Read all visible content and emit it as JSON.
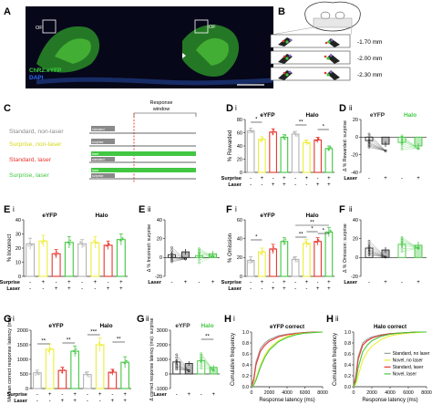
{
  "colors": {
    "grey": "#b3b3b3",
    "yellow": "#eded3a",
    "red": "#e8362f",
    "green": "#42c742",
    "dark": "#2a2a2a"
  },
  "panel_labels": {
    "A": "A",
    "B": "B",
    "C": "C",
    "D": "D",
    "Di": "i",
    "Dii": "ii",
    "E": "E",
    "Ei": "i",
    "Eii": "ii",
    "F": "F",
    "Fi": "i",
    "Fii": "ii",
    "G": "G",
    "Gi": "i",
    "Gii": "ii",
    "H1": "H",
    "H1i": "i",
    "H2": "H",
    "H2ii": "ii"
  },
  "panel_a": {
    "label_of_left": "OF",
    "label_of_right": "OF",
    "legend_1": "ChR2:eYFP",
    "legend_2": "DAPI",
    "legend_1_color": "#39d23a",
    "legend_2_color": "#2d6bff"
  },
  "panel_b": {
    "levels": [
      "-1.70 mm",
      "-2.00 mm",
      "-2.30 mm"
    ]
  },
  "panel_c": {
    "response_window_line1": "Response",
    "response_window_line2": "window",
    "bar_label_standard": "standard",
    "bar_label_surprise": "surprise",
    "bar_label_laser": "laser",
    "rows": [
      {
        "label": "Standard, non-laser",
        "color": "#8a8a8a"
      },
      {
        "label": "Surprise, non-laser",
        "color": "#d7d61a"
      },
      {
        "label": "Standard, laser",
        "color": "#e8362f"
      },
      {
        "label": "Surprise, laser",
        "color": "#42c742"
      }
    ]
  },
  "shared": {
    "eyfp": "eYFP",
    "halo": "Halo",
    "surprise_label": "Surprise",
    "laser_label": "Laser",
    "minus": "-",
    "plus": "+"
  },
  "chart_data": [
    {
      "id": "Di",
      "type": "bar",
      "ylabel": "% Rewarded",
      "ylim": [
        0,
        80
      ],
      "yticks": [
        0,
        20,
        40,
        60,
        80
      ],
      "groups": [
        "eYFP",
        "Halo"
      ],
      "surprise": [
        "-",
        "+",
        "-",
        "+",
        "-",
        "+",
        "-",
        "+"
      ],
      "laser": [
        "-",
        "-",
        "+",
        "+",
        "-",
        "-",
        "+",
        "+"
      ],
      "values": [
        63,
        50,
        61,
        53,
        58,
        45,
        49,
        36
      ],
      "errors": [
        4,
        4,
        5,
        4,
        4,
        4,
        4,
        4
      ],
      "significance": [
        "*",
        "**",
        "*"
      ]
    },
    {
      "id": "Dii",
      "type": "scatter",
      "ylabel": "Δ % Rewarded: surprise",
      "ylim": [
        -40,
        20
      ],
      "yticks": [
        -40,
        -20,
        0,
        20
      ],
      "laser": [
        "-",
        "+",
        "-",
        "+"
      ],
      "means": [
        -4,
        -8,
        -6,
        -10
      ],
      "errors": [
        3,
        3,
        3,
        3
      ]
    },
    {
      "id": "Ei",
      "type": "bar",
      "ylabel": "% Incorrect",
      "ylim": [
        0,
        40
      ],
      "yticks": [
        0,
        10,
        20,
        30,
        40
      ],
      "groups": [
        "eYFP",
        "Halo"
      ],
      "surprise": [
        "-",
        "+",
        "-",
        "+",
        "-",
        "+",
        "-",
        "+"
      ],
      "laser": [
        "-",
        "-",
        "+",
        "+",
        "-",
        "-",
        "+",
        "+"
      ],
      "values": [
        23,
        25,
        16,
        24,
        23,
        24,
        22,
        26
      ],
      "errors": [
        4,
        4,
        3,
        4,
        3,
        4,
        3,
        4
      ]
    },
    {
      "id": "Eii",
      "type": "scatter",
      "ylabel": "Δ % Incorrect: surprise",
      "ylim": [
        -20,
        40
      ],
      "yticks": [
        -20,
        0,
        20,
        40
      ],
      "laser": [
        "-",
        "+",
        "-",
        "+"
      ],
      "means": [
        3,
        6,
        2,
        4
      ],
      "errors": [
        3,
        3,
        3,
        3
      ]
    },
    {
      "id": "Fi",
      "type": "bar",
      "ylabel": "% Omission",
      "ylim": [
        0,
        60
      ],
      "yticks": [
        0,
        20,
        40,
        60
      ],
      "groups": [
        "eYFP",
        "Halo"
      ],
      "surprise": [
        "-",
        "+",
        "-",
        "+",
        "-",
        "+",
        "-",
        "+"
      ],
      "laser": [
        "-",
        "-",
        "+",
        "+",
        "-",
        "-",
        "+",
        "+"
      ],
      "values": [
        17,
        26,
        29,
        37,
        18,
        35,
        37,
        47
      ],
      "errors": [
        4,
        4,
        5,
        4,
        3,
        4,
        4,
        5
      ],
      "significance": [
        "*",
        "**",
        "*",
        "**",
        "*"
      ]
    },
    {
      "id": "Fii",
      "type": "scatter",
      "ylabel": "Δ % Omission: surprise",
      "ylim": [
        -20,
        40
      ],
      "yticks": [
        -20,
        0,
        20,
        40
      ],
      "laser": [
        "-",
        "+",
        "-",
        "+"
      ],
      "means": [
        10,
        8,
        14,
        13
      ],
      "errors": [
        4,
        3,
        4,
        4
      ]
    },
    {
      "id": "Gi",
      "type": "bar",
      "ylabel": "Median correct response latency (ms)",
      "ylim": [
        0,
        2000
      ],
      "yticks": [
        0,
        500,
        1000,
        1500,
        2000
      ],
      "groups": [
        "eYFP",
        "Halo"
      ],
      "surprise": [
        "-",
        "+",
        "-",
        "+",
        "-",
        "+",
        "-",
        "+"
      ],
      "laser": [
        "-",
        "-",
        "+",
        "+",
        "-",
        "-",
        "+",
        "+"
      ],
      "values": [
        540,
        1350,
        620,
        1280,
        480,
        1500,
        560,
        900
      ],
      "errors": [
        90,
        180,
        110,
        180,
        90,
        230,
        100,
        190
      ],
      "significance": [
        "**",
        "**",
        "***",
        "**"
      ]
    },
    {
      "id": "Gii",
      "type": "scatter",
      "ylabel": "Δ correct response latency (ms): surprise",
      "ylim": [
        -1000,
        3000
      ],
      "yticks": [
        -1000,
        0,
        1000,
        2000,
        3000
      ],
      "laser": [
        "-",
        "+",
        "-",
        "+"
      ],
      "means": [
        820,
        720,
        900,
        450
      ],
      "errors": [
        150,
        150,
        150,
        150
      ],
      "significance": [
        "**"
      ]
    },
    {
      "id": "Hi",
      "type": "line",
      "title": "eYFP correct",
      "xlabel": "Response latency (ms)",
      "ylabel": "Cumulative frequency",
      "xlim": [
        0,
        8000
      ],
      "ylim": [
        0,
        1
      ],
      "xticks": [
        0,
        2000,
        4000,
        6000,
        8000
      ],
      "yticks": [
        0,
        0.2,
        0.4,
        0.6,
        0.8,
        1.0
      ],
      "x": [
        0,
        250,
        500,
        1000,
        1500,
        2000,
        3000,
        4000,
        5000,
        6000,
        7000,
        8000
      ],
      "series": [
        {
          "color": "#9e9e9e",
          "values": [
            0,
            0.15,
            0.45,
            0.7,
            0.8,
            0.86,
            0.93,
            0.96,
            0.98,
            0.99,
            1.0,
            1.0
          ]
        },
        {
          "color": "#e8362f",
          "values": [
            0,
            0.12,
            0.4,
            0.65,
            0.76,
            0.83,
            0.91,
            0.95,
            0.97,
            0.99,
            1.0,
            1.0
          ]
        },
        {
          "color": "#eded3a",
          "values": [
            0,
            0.04,
            0.15,
            0.4,
            0.58,
            0.7,
            0.84,
            0.92,
            0.96,
            0.98,
            0.99,
            1.0
          ]
        },
        {
          "color": "#42c742",
          "values": [
            0,
            0.03,
            0.12,
            0.36,
            0.54,
            0.67,
            0.82,
            0.9,
            0.95,
            0.98,
            0.99,
            1.0
          ]
        }
      ]
    },
    {
      "id": "Hii",
      "type": "line",
      "title": "Halo correct",
      "xlabel": "Response latency (ms)",
      "ylabel": "Cumulative frequency",
      "xlim": [
        0,
        8000
      ],
      "ylim": [
        0,
        1
      ],
      "xticks": [
        0,
        2000,
        4000,
        6000,
        8000
      ],
      "yticks": [
        0,
        0.2,
        0.4,
        0.6,
        0.8,
        1.0
      ],
      "legend": [
        "Standard, no laser",
        "Novel, no laser",
        "Standard, laser",
        "Novel, laser"
      ],
      "x": [
        0,
        250,
        500,
        1000,
        1500,
        2000,
        3000,
        4000,
        5000,
        6000,
        7000,
        8000
      ],
      "series": [
        {
          "name": "Standard, no laser",
          "color": "#9e9e9e",
          "values": [
            0,
            0.2,
            0.55,
            0.8,
            0.87,
            0.91,
            0.95,
            0.97,
            0.98,
            0.99,
            1.0,
            1.0
          ]
        },
        {
          "name": "Novel, no laser",
          "color": "#eded3a",
          "values": [
            0,
            0.05,
            0.2,
            0.48,
            0.64,
            0.74,
            0.86,
            0.93,
            0.96,
            0.98,
            0.99,
            1.0
          ]
        },
        {
          "name": "Standard, laser",
          "color": "#e8362f",
          "values": [
            0,
            0.18,
            0.5,
            0.76,
            0.84,
            0.89,
            0.94,
            0.97,
            0.98,
            0.99,
            1.0,
            1.0
          ]
        },
        {
          "name": "Novel, laser",
          "color": "#42c742",
          "values": [
            0,
            0.1,
            0.35,
            0.64,
            0.76,
            0.84,
            0.92,
            0.96,
            0.98,
            0.99,
            1.0,
            1.0
          ]
        }
      ]
    }
  ]
}
